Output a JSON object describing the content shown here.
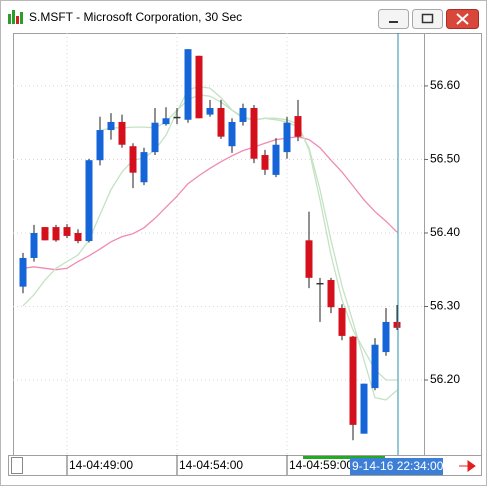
{
  "window": {
    "title": "S.MSFT - Microsoft Corporation, 30 Sec"
  },
  "chart_data": {
    "type": "candlestick",
    "categories": [
      null,
      null,
      null,
      null,
      "14-04:49:00",
      null,
      null,
      null,
      null,
      null,
      null,
      null,
      null,
      null,
      "14-04:54:00",
      null,
      null,
      null,
      null,
      null,
      null,
      null,
      null,
      null,
      "14-04:59:00",
      null,
      null,
      null,
      null,
      null,
      null,
      null,
      null,
      null,
      null
    ],
    "open": [
      56.327,
      56.366,
      56.408,
      56.408,
      56.408,
      56.4,
      56.389,
      56.499,
      56.54,
      56.551,
      56.518,
      56.469,
      56.51,
      56.548,
      56.558,
      56.554,
      56.641,
      56.561,
      56.57,
      56.518,
      56.551,
      56.57,
      56.506,
      56.479,
      56.51,
      56.559,
      56.39,
      56.332,
      56.336,
      56.298,
      56.259,
      56.127,
      56.189,
      56.238,
      56.279
    ],
    "high": [
      56.373,
      56.411,
      56.408,
      56.411,
      56.412,
      56.405,
      56.501,
      56.558,
      56.563,
      56.561,
      56.522,
      56.516,
      56.57,
      56.571,
      56.57,
      56.65,
      56.641,
      56.581,
      56.581,
      56.556,
      56.576,
      56.574,
      56.513,
      56.529,
      56.558,
      56.581,
      56.429,
      56.339,
      56.339,
      56.303,
      56.26,
      56.195,
      56.257,
      56.298,
      56.302
    ],
    "low": [
      56.318,
      56.361,
      56.39,
      56.388,
      56.393,
      56.386,
      56.387,
      56.492,
      56.527,
      56.516,
      56.461,
      56.465,
      56.506,
      56.546,
      56.548,
      56.55,
      56.556,
      56.558,
      56.528,
      56.509,
      56.546,
      56.495,
      56.479,
      56.476,
      56.501,
      56.525,
      56.325,
      56.279,
      56.291,
      56.254,
      56.118,
      56.127,
      56.186,
      56.233,
      56.268
    ],
    "close": [
      56.366,
      56.4,
      56.39,
      56.39,
      56.396,
      56.389,
      56.499,
      56.54,
      56.551,
      56.52,
      56.482,
      56.51,
      56.55,
      56.556,
      56.558,
      56.65,
      56.556,
      56.57,
      56.531,
      56.551,
      56.57,
      56.501,
      56.486,
      56.52,
      56.55,
      56.531,
      56.339,
      56.332,
      56.299,
      56.26,
      56.139,
      56.195,
      56.248,
      56.279,
      56.271
    ],
    "up_color": "#1565d8",
    "down_color": "#d4101c",
    "flat_color": "#333333",
    "lines": [
      {
        "color": "#f08ab4",
        "values": [
          56.352,
          56.354,
          56.352,
          56.35,
          56.352,
          56.361,
          56.369,
          56.378,
          56.388,
          56.395,
          56.399,
          56.407,
          56.42,
          56.435,
          56.45,
          56.467,
          56.478,
          56.488,
          56.497,
          56.505,
          56.512,
          56.517,
          56.522,
          56.527,
          56.529,
          56.531,
          56.527,
          56.516,
          56.499,
          56.483,
          56.464,
          56.445,
          56.429,
          56.416,
          56.401
        ]
      },
      {
        "color": "#c4e2c4",
        "values": [
          56.301,
          56.316,
          56.336,
          56.352,
          56.361,
          56.37,
          56.39,
          56.425,
          56.459,
          56.483,
          56.499,
          56.502,
          56.513,
          56.533,
          56.565,
          56.595,
          56.599,
          56.597,
          56.584,
          56.567,
          56.556,
          56.554,
          56.556,
          56.554,
          56.551,
          56.544,
          56.516,
          56.459,
          56.39,
          56.328,
          56.279,
          56.227,
          56.176,
          56.173,
          56.186
        ]
      },
      {
        "color": "#c4e2c4",
        "values": [
          null,
          null,
          null,
          null,
          null,
          null,
          null,
          56.539,
          56.543,
          56.543,
          56.544,
          56.544,
          56.543,
          56.551,
          56.567,
          56.581,
          56.588,
          56.586,
          56.578,
          56.567,
          56.558,
          56.554,
          56.556,
          56.556,
          56.554,
          56.548,
          56.513,
          56.445,
          56.37,
          56.309,
          56.268,
          56.241,
          56.214,
          56.2,
          56.2
        ]
      }
    ],
    "ylim": [
      56.098,
      56.672
    ],
    "yticks": [
      {
        "value": 56.6,
        "label": "56.60"
      },
      {
        "value": 56.5,
        "label": "56.50"
      },
      {
        "value": 56.4,
        "label": "56.40"
      },
      {
        "value": 56.3,
        "label": "56.30"
      },
      {
        "value": 56.2,
        "label": "56.20"
      }
    ],
    "grid": true,
    "cursor_label": "9-14-16 22:34:00"
  }
}
